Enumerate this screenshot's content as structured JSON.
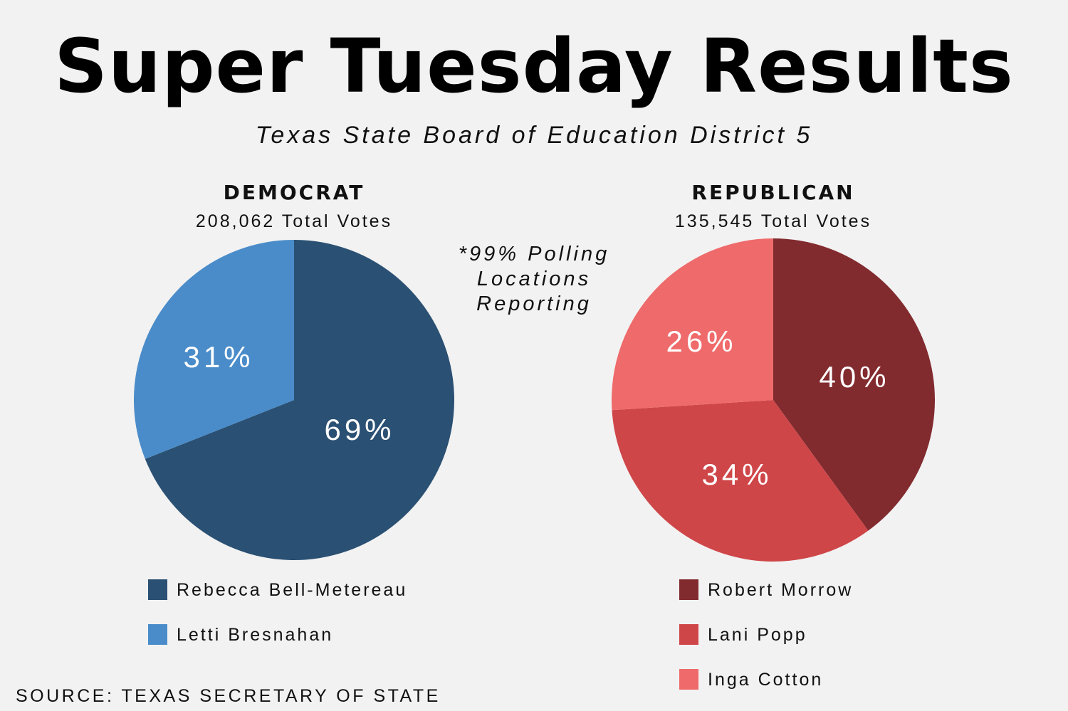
{
  "title": "Super Tuesday Results",
  "subtitle": "Texas State Board of Education District 5",
  "note_lines": [
    "*99% Polling",
    "Locations",
    "Reporting"
  ],
  "source": "SOURCE: TEXAS SECRETARY OF STATE",
  "chart_data": [
    {
      "type": "pie",
      "title": "DEMOCRAT",
      "subtitle": "208,062 Total Votes",
      "labels": [
        "Rebecca Bell-Metereau",
        "Letti Bresnahan"
      ],
      "values": [
        69,
        31
      ],
      "value_labels": [
        "69%",
        "31%"
      ],
      "colors": [
        "#2a5073",
        "#4a8cc9"
      ],
      "legend_placement": "bottom"
    },
    {
      "type": "pie",
      "title": "REPUBLICAN",
      "subtitle": "135,545 Total Votes",
      "labels": [
        "Robert Morrow",
        "Lani Popp",
        "Inga Cotton"
      ],
      "values": [
        40,
        34,
        26
      ],
      "value_labels": [
        "40%",
        "34%",
        "26%"
      ],
      "colors": [
        "#822b2f",
        "#cf4649",
        "#ef6a6b"
      ],
      "legend_placement": "bottom"
    }
  ]
}
